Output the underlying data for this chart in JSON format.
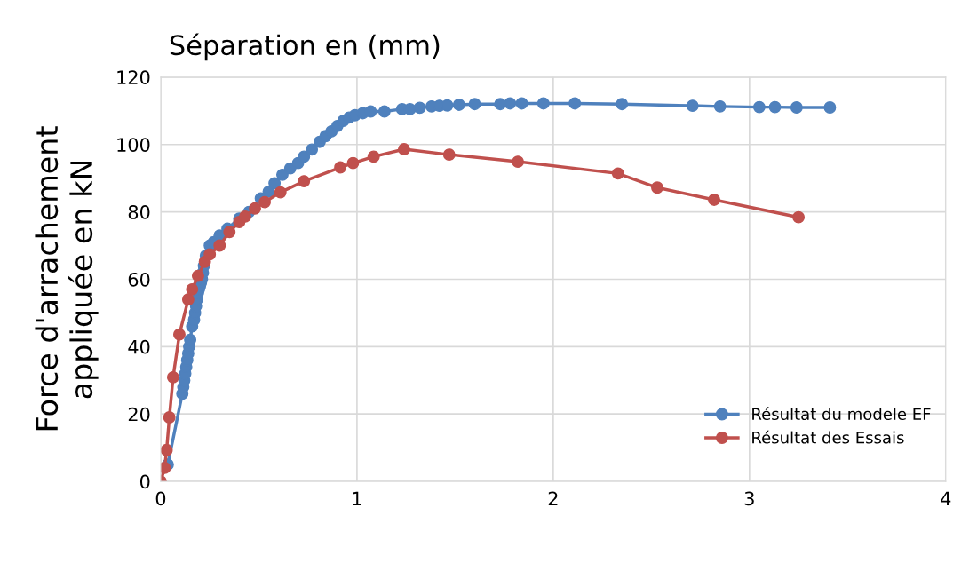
{
  "chart_data": {
    "type": "line",
    "title": "Séparation en (mm)",
    "ylabel": "Force d'arrachement\nappliquée en kN",
    "xlim": [
      0,
      4
    ],
    "xticks": [
      0,
      1,
      2,
      3,
      4
    ],
    "ylim": [
      0,
      120
    ],
    "yticks": [
      0,
      20,
      40,
      60,
      80,
      100,
      120
    ],
    "grid": true,
    "legend": "bottom right",
    "marker": "circle",
    "line_style": "solid",
    "series": [
      {
        "name": "Résultat du modele EF",
        "color": "#4f81bd",
        "x": [
          0.036,
          0.11,
          0.115,
          0.12,
          0.125,
          0.13,
          0.135,
          0.14,
          0.145,
          0.15,
          0.16,
          0.17,
          0.175,
          0.18,
          0.185,
          0.19,
          0.195,
          0.2,
          0.205,
          0.21,
          0.215,
          0.22,
          0.23,
          0.25,
          0.27,
          0.3,
          0.34,
          0.4,
          0.45,
          0.51,
          0.55,
          0.58,
          0.62,
          0.66,
          0.7,
          0.73,
          0.77,
          0.81,
          0.84,
          0.87,
          0.9,
          0.93,
          0.96,
          0.99,
          1.03,
          1.07,
          1.14,
          1.23,
          1.27,
          1.32,
          1.38,
          1.42,
          1.46,
          1.52,
          1.6,
          1.73,
          1.78,
          1.84,
          1.95,
          2.11,
          2.35,
          2.71,
          2.85,
          3.05,
          3.13,
          3.24,
          3.41
        ],
        "values": [
          5,
          26,
          28,
          30,
          32,
          34,
          36,
          38,
          40,
          42,
          46,
          48,
          50,
          52,
          54,
          56,
          57,
          58,
          59,
          60,
          62,
          64,
          67,
          70,
          71,
          73,
          75,
          78,
          80,
          84,
          86,
          88.5,
          91,
          92.9,
          94.5,
          96.4,
          98.5,
          100.8,
          102.5,
          103.9,
          105.5,
          107,
          108,
          108.7,
          109.3,
          109.8,
          109.8,
          110.5,
          110.5,
          110.9,
          111.3,
          111.5,
          111.6,
          111.8,
          112,
          112,
          112.2,
          112.2,
          112.2,
          112.2,
          112,
          111.5,
          111.3,
          111.1,
          111.1,
          111,
          111
        ]
      },
      {
        "name": "Résultat des Essais",
        "color": "#c0504d",
        "x": [
          0,
          0.02,
          0.03,
          0.044,
          0.063,
          0.095,
          0.14,
          0.16,
          0.19,
          0.225,
          0.25,
          0.3,
          0.35,
          0.4,
          0.43,
          0.48,
          0.53,
          0.61,
          0.73,
          0.915,
          0.98,
          1.085,
          1.24,
          1.47,
          1.82,
          2.33,
          2.53,
          2.82,
          3.25
        ],
        "values": [
          0,
          4,
          9.3,
          19,
          30.9,
          43.6,
          54,
          57,
          61,
          65.2,
          67.4,
          70,
          74,
          77,
          78.6,
          81,
          82.9,
          85.8,
          89.1,
          93.2,
          94.5,
          96.4,
          98.6,
          97,
          94.9,
          91.4,
          87.2,
          83.6,
          78.4
        ]
      }
    ]
  }
}
